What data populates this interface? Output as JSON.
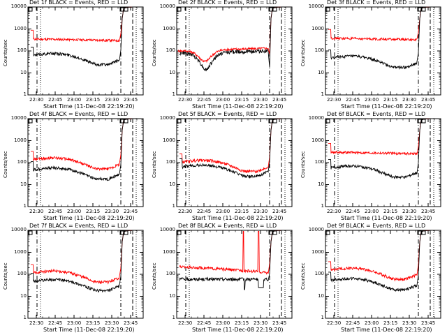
{
  "chart_data": [
    {
      "type": "line",
      "title": "Det 1f BLACK = Events, RED = LLD",
      "xlabel": "Start Time (11-Dec-08 22:19:20)",
      "ylabel": "Counts/sec",
      "x_ticks": [
        "22:30",
        "22:45",
        "23:00",
        "23:15",
        "23:30",
        "23:45"
      ],
      "y_ticks": [
        "1",
        "10",
        "100",
        "1000",
        "10000"
      ],
      "ylim": [
        1,
        10000
      ],
      "yscale": "log",
      "series": [
        {
          "color": "#ff0000",
          "profile": "flat",
          "level": 350
        },
        {
          "color": "#000000",
          "profile": "bowl",
          "level": 60
        }
      ]
    },
    {
      "type": "line",
      "title": "Det 2f BLACK = Events, RED = LLD",
      "xlabel": "Start Time (11-Dec-08 22:19:20)",
      "ylabel": "Counts/sec",
      "x_ticks": [
        "22:30",
        "22:45",
        "23:00",
        "23:15",
        "23:30",
        "23:45"
      ],
      "y_ticks": [
        "1",
        "10",
        "100",
        "1000",
        "10000"
      ],
      "ylim": [
        1,
        10000
      ],
      "yscale": "log",
      "series": [
        {
          "color": "#ff0000",
          "profile": "dip",
          "level": 40
        },
        {
          "color": "#000000",
          "profile": "deepdip",
          "level": 10
        }
      ]
    },
    {
      "type": "line",
      "title": "Det 3f BLACK = Events, RED = LLD",
      "xlabel": "Start Time (11-Dec-08 22:19:20)",
      "ylabel": "Counts/sec",
      "x_ticks": [
        "22:30",
        "22:45",
        "23:00",
        "23:15",
        "23:30",
        "23:45"
      ],
      "y_ticks": [
        "1",
        "10",
        "100",
        "1000",
        "10000"
      ],
      "ylim": [
        1,
        10000
      ],
      "yscale": "log",
      "series": [
        {
          "color": "#ff0000",
          "profile": "flat",
          "level": 380
        },
        {
          "color": "#000000",
          "profile": "bowl",
          "level": 45
        }
      ]
    },
    {
      "type": "line",
      "title": "Det 4f BLACK = Events, RED = LLD",
      "xlabel": "Start Time (11-Dec-08 22:19:20)",
      "ylabel": "Counts/sec",
      "x_ticks": [
        "22:30",
        "22:45",
        "23:00",
        "23:15",
        "23:30",
        "23:45"
      ],
      "y_ticks": [
        "1",
        "10",
        "100",
        "1000",
        "10000"
      ],
      "ylim": [
        1,
        10000
      ],
      "yscale": "log",
      "series": [
        {
          "color": "#ff0000",
          "profile": "bowl",
          "level": 130
        },
        {
          "color": "#000000",
          "profile": "bowl",
          "level": 45
        }
      ]
    },
    {
      "type": "line",
      "title": "Det 5f BLACK = Events, RED = LLD",
      "xlabel": "Start Time (11-Dec-08 22:19:20)",
      "ylabel": "Counts/sec",
      "x_ticks": [
        "22:30",
        "22:45",
        "23:00",
        "23:15",
        "23:30",
        "23:45"
      ],
      "y_ticks": [
        "1",
        "10",
        "100",
        "1000",
        "10000"
      ],
      "ylim": [
        1,
        10000
      ],
      "yscale": "log",
      "series": [
        {
          "color": "#ff0000",
          "profile": "bowl",
          "level": 100
        },
        {
          "color": "#000000",
          "profile": "bowl",
          "level": 60
        }
      ]
    },
    {
      "type": "line",
      "title": "Det 6f BLACK = Events, RED = LLD",
      "xlabel": "Start Time (11-Dec-08 22:19:20)",
      "ylabel": "Counts/sec",
      "x_ticks": [
        "22:30",
        "22:45",
        "23:00",
        "23:15",
        "23:30",
        "23:45"
      ],
      "y_ticks": [
        "1",
        "10",
        "100",
        "1000",
        "10000"
      ],
      "ylim": [
        1,
        10000
      ],
      "yscale": "log",
      "series": [
        {
          "color": "#ff0000",
          "profile": "flat",
          "level": 300
        },
        {
          "color": "#000000",
          "profile": "bowl",
          "level": 55
        }
      ]
    },
    {
      "type": "line",
      "title": "Det 7f BLACK = Events, RED = LLD",
      "xlabel": "Start Time (11-Dec-08 22:19:20)",
      "ylabel": "Counts/sec",
      "x_ticks": [
        "22:30",
        "22:45",
        "23:00",
        "23:15",
        "23:30",
        "23:45"
      ],
      "y_ticks": [
        "1",
        "10",
        "100",
        "1000",
        "10000"
      ],
      "ylim": [
        1,
        10000
      ],
      "yscale": "log",
      "series": [
        {
          "color": "#ff0000",
          "profile": "bowl",
          "level": 110
        },
        {
          "color": "#000000",
          "profile": "bowl",
          "level": 45
        }
      ]
    },
    {
      "type": "line",
      "title": "Det 8f BLACK = Events, RED = LLD",
      "xlabel": "Start Time (11-Dec-08 22:19:20)",
      "ylabel": "Counts/sec",
      "x_ticks": [
        "22:30",
        "22:45",
        "23:00",
        "23:15",
        "23:30",
        "23:45"
      ],
      "y_ticks": [
        "1",
        "10",
        "100",
        "1000",
        "10000"
      ],
      "ylim": [
        1,
        10000
      ],
      "yscale": "log",
      "series": [
        {
          "color": "#ff0000",
          "profile": "spike",
          "level": 170
        },
        {
          "color": "#000000",
          "profile": "spikeblack",
          "level": 60
        }
      ]
    },
    {
      "type": "line",
      "title": "Det 9f BLACK = Events, RED = LLD",
      "xlabel": "Start Time (11-Dec-08 22:19:20)",
      "ylabel": "Counts/sec",
      "x_ticks": [
        "22:30",
        "22:45",
        "23:00",
        "23:15",
        "23:30",
        "23:45"
      ],
      "y_ticks": [
        "1",
        "10",
        "100",
        "1000",
        "10000"
      ],
      "ylim": [
        1,
        10000
      ],
      "yscale": "log",
      "series": [
        {
          "color": "#ff0000",
          "profile": "bowl",
          "level": 150
        },
        {
          "color": "#000000",
          "profile": "bowl",
          "level": 50
        }
      ]
    }
  ]
}
